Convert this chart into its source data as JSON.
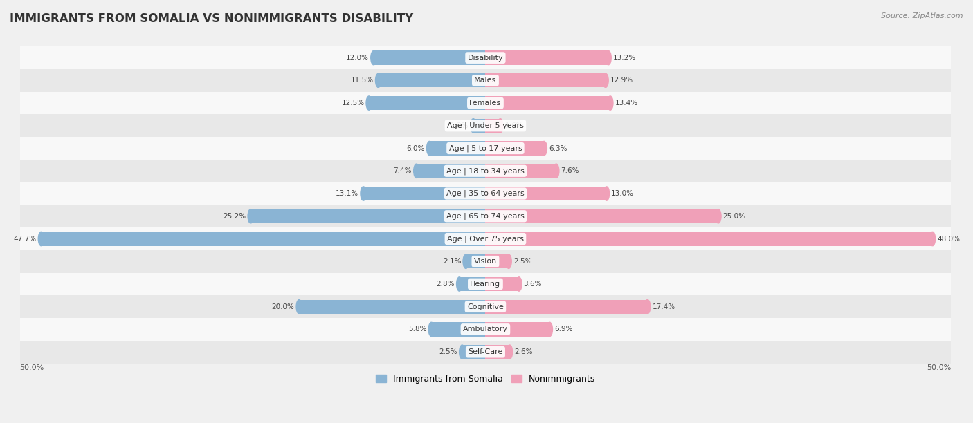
{
  "title": "IMMIGRANTS FROM SOMALIA VS NONIMMIGRANTS DISABILITY",
  "source": "Source: ZipAtlas.com",
  "categories": [
    "Disability",
    "Males",
    "Females",
    "Age | Under 5 years",
    "Age | 5 to 17 years",
    "Age | 18 to 34 years",
    "Age | 35 to 64 years",
    "Age | 65 to 74 years",
    "Age | Over 75 years",
    "Vision",
    "Hearing",
    "Cognitive",
    "Ambulatory",
    "Self-Care"
  ],
  "somalia_values": [
    12.0,
    11.5,
    12.5,
    1.3,
    6.0,
    7.4,
    13.1,
    25.2,
    47.7,
    2.1,
    2.8,
    20.0,
    5.8,
    2.5
  ],
  "nonimmigrant_values": [
    13.2,
    12.9,
    13.4,
    1.6,
    6.3,
    7.6,
    13.0,
    25.0,
    48.0,
    2.5,
    3.6,
    17.4,
    6.9,
    2.6
  ],
  "somalia_color": "#8ab4d4",
  "nonimmigrant_color": "#f0a0b8",
  "somalia_label": "Immigrants from Somalia",
  "nonimmigrant_label": "Nonimmigrants",
  "axis_limit": 50.0,
  "bar_height": 0.62,
  "background_color": "#f0f0f0",
  "row_color_even": "#f8f8f8",
  "row_color_odd": "#e8e8e8",
  "title_fontsize": 12,
  "label_fontsize": 8,
  "value_fontsize": 7.5,
  "legend_fontsize": 9,
  "source_fontsize": 8
}
